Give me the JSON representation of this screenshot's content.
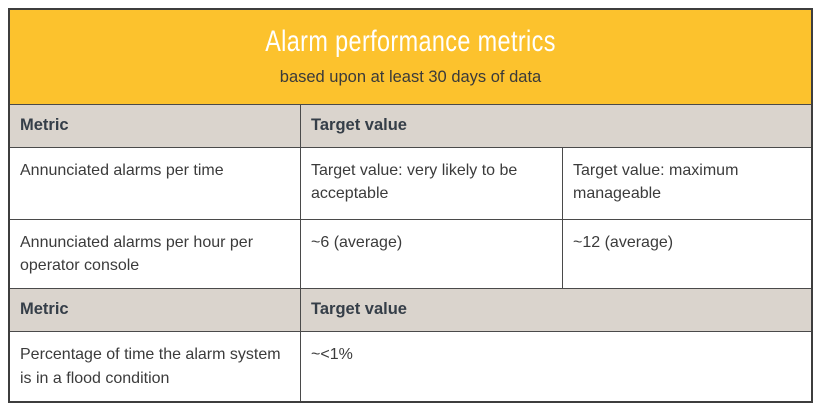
{
  "banner": {
    "title": "Alarm performance metrics",
    "subtitle": "based upon at least 30 days of data"
  },
  "colors": {
    "banner_background": "#FCC22D",
    "banner_title_text": "#FFFFFF",
    "header_row_background": "#DAD4CD",
    "header_text": "#353E48",
    "body_text": "#3B3B3B",
    "border": "#3E3E3E"
  },
  "table": {
    "sections": [
      {
        "header": {
          "metric": "Metric",
          "target": "Target value"
        },
        "rows": [
          {
            "metric": "Annunciated alarms per time",
            "cells": [
              "Target value: very likely to be acceptable",
              "Target value: maximum manageable"
            ]
          },
          {
            "metric": "Annunciated alarms per hour per operator console",
            "cells": [
              "~6 (average)",
              "~12 (average)"
            ]
          }
        ]
      },
      {
        "header": {
          "metric": "Metric",
          "target": "Target value"
        },
        "rows": [
          {
            "metric": "Percentage of time the alarm system is in a flood condition",
            "cells": [
              "~<1%"
            ]
          }
        ]
      }
    ]
  }
}
